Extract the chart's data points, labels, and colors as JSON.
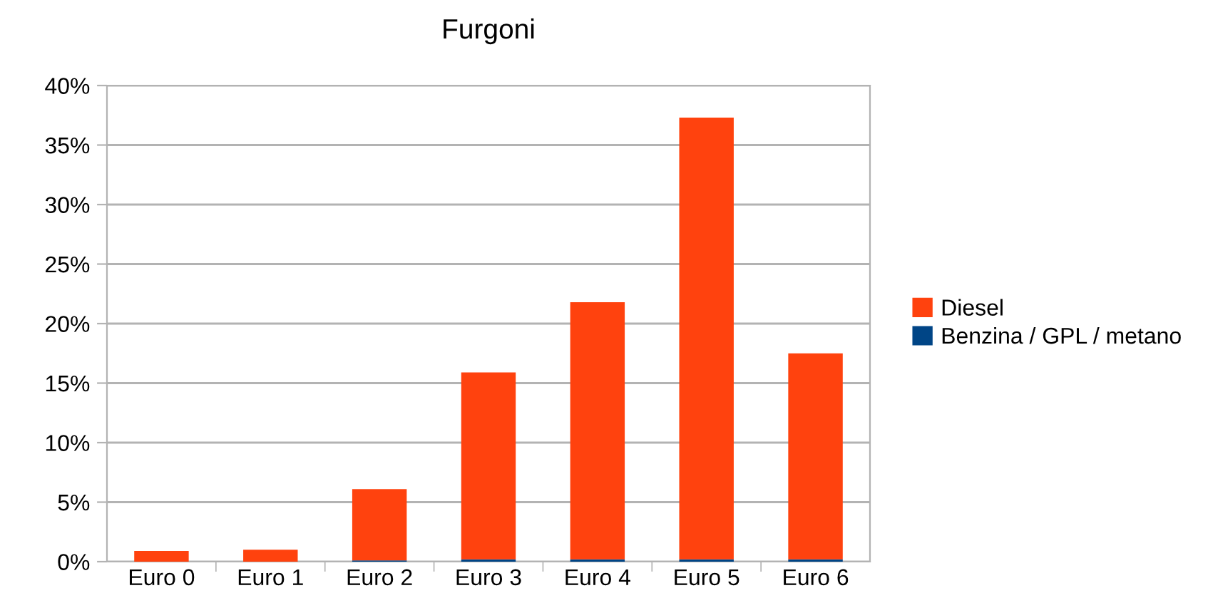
{
  "chart_data": {
    "type": "bar",
    "title": "Furgoni",
    "stacked": true,
    "categories": [
      "Euro 0",
      "Euro 1",
      "Euro 2",
      "Euro 3",
      "Euro 4",
      "Euro 5",
      "Euro 6"
    ],
    "series": [
      {
        "name": "Benzina / GPL / metano",
        "color": "#004586",
        "values": [
          0.0,
          0.0,
          0.1,
          0.2,
          0.2,
          0.2,
          0.2
        ]
      },
      {
        "name": "Diesel",
        "color": "#ff420e",
        "values": [
          0.9,
          1.0,
          6.0,
          15.7,
          21.6,
          37.1,
          17.3
        ]
      }
    ],
    "ylim": [
      0,
      40
    ],
    "yticks": [
      {
        "value": 0,
        "label": "0%"
      },
      {
        "value": 5,
        "label": "5%"
      },
      {
        "value": 10,
        "label": "10%"
      },
      {
        "value": 15,
        "label": "15%"
      },
      {
        "value": 20,
        "label": "20%"
      },
      {
        "value": 25,
        "label": "25%"
      },
      {
        "value": 30,
        "label": "30%"
      },
      {
        "value": 35,
        "label": "35%"
      },
      {
        "value": 40,
        "label": "40%"
      }
    ],
    "grid": "y",
    "legend": "right"
  }
}
